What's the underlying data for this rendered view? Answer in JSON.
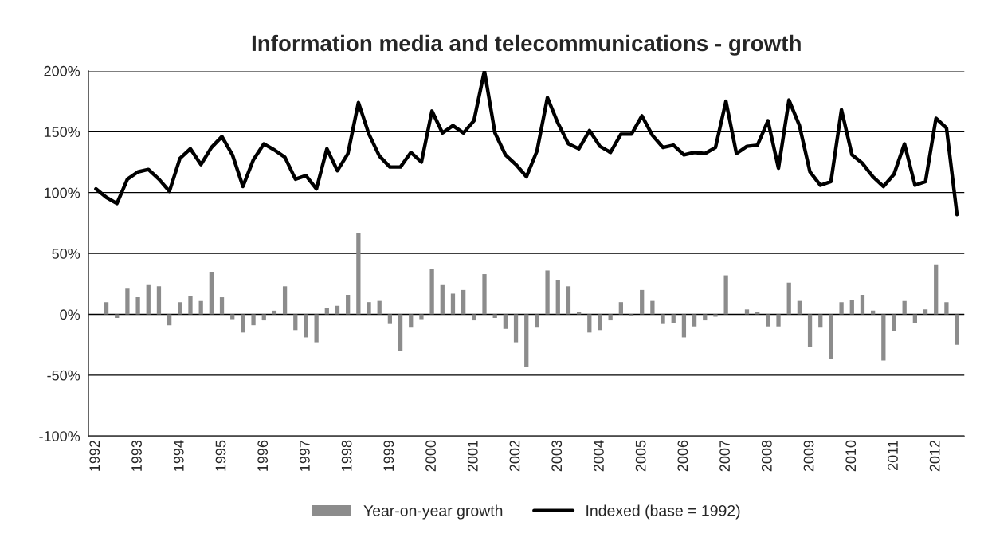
{
  "chart_data": {
    "type": "bar",
    "title": "Information media and telecommunications - growth",
    "categories": [
      "1992",
      null,
      null,
      null,
      "1993",
      null,
      null,
      null,
      "1994",
      null,
      null,
      null,
      "1995",
      null,
      null,
      null,
      "1996",
      null,
      null,
      null,
      "1997",
      null,
      null,
      null,
      "1998",
      null,
      null,
      null,
      "1999",
      null,
      null,
      null,
      "2000",
      null,
      null,
      null,
      "2001",
      null,
      null,
      null,
      "2002",
      null,
      null,
      null,
      "2003",
      null,
      null,
      null,
      "2004",
      null,
      null,
      null,
      "2005",
      null,
      null,
      null,
      "2006",
      null,
      null,
      null,
      "2007",
      null,
      null,
      null,
      "2008",
      null,
      null,
      null,
      "2009",
      null,
      null,
      null,
      "2010",
      null,
      null,
      null,
      "2011",
      null,
      null,
      null,
      "2012",
      null,
      null
    ],
    "series": [
      {
        "name": "Year-on-year growth",
        "color": "#8c8c8c",
        "values": [
          null,
          10,
          -3,
          21,
          14,
          24,
          23,
          -9,
          10,
          15,
          11,
          35,
          14,
          -4,
          -15,
          -9,
          -5,
          3,
          23,
          -13,
          -19,
          -23,
          5,
          7,
          16,
          67,
          10,
          11,
          -8,
          -30,
          -11,
          -4,
          37,
          24,
          17,
          20,
          -5,
          33,
          -3,
          -12,
          -23,
          -43,
          -11,
          36,
          28,
          23,
          2,
          -15,
          -13,
          -5,
          10,
          -1,
          20,
          11,
          -8,
          -7,
          -19,
          -10,
          -5,
          -2,
          32,
          null,
          4,
          2,
          -10,
          -10,
          26,
          11,
          -27,
          -11,
          -37,
          10,
          12,
          16,
          3,
          -38,
          -14,
          11,
          -7,
          4,
          41,
          10,
          -25
        ]
      },
      {
        "name": "Indexed (base = 1992)",
        "type": "line",
        "color": "#000000",
        "values": [
          103,
          96,
          91,
          111,
          117,
          119,
          111,
          101,
          128,
          136,
          123,
          137,
          146,
          131,
          105,
          127,
          140,
          135,
          129,
          111,
          114,
          103,
          136,
          118,
          132,
          174,
          148,
          130,
          121,
          121,
          133,
          125,
          167,
          149,
          155,
          149,
          159,
          200,
          149,
          131,
          123,
          113,
          134,
          178,
          157,
          140,
          136,
          151,
          138,
          133,
          148,
          148,
          163,
          147,
          137,
          139,
          131,
          133,
          132,
          137,
          175,
          132,
          138,
          139,
          159,
          120,
          176,
          155,
          117,
          106,
          109,
          168,
          131,
          124,
          113,
          105,
          115,
          140,
          106,
          109,
          161,
          153,
          82
        ]
      }
    ],
    "ylim": [
      -100,
      200
    ],
    "yticks": [
      {
        "value": -100,
        "label": "-100%"
      },
      {
        "value": -50,
        "label": "-50%"
      },
      {
        "value": 0,
        "label": "0%"
      },
      {
        "value": 50,
        "label": "50%"
      },
      {
        "value": 100,
        "label": "100%"
      },
      {
        "value": 150,
        "label": "150%"
      },
      {
        "value": 200,
        "label": "200%"
      }
    ],
    "grid": "y",
    "legend": "bottom"
  }
}
